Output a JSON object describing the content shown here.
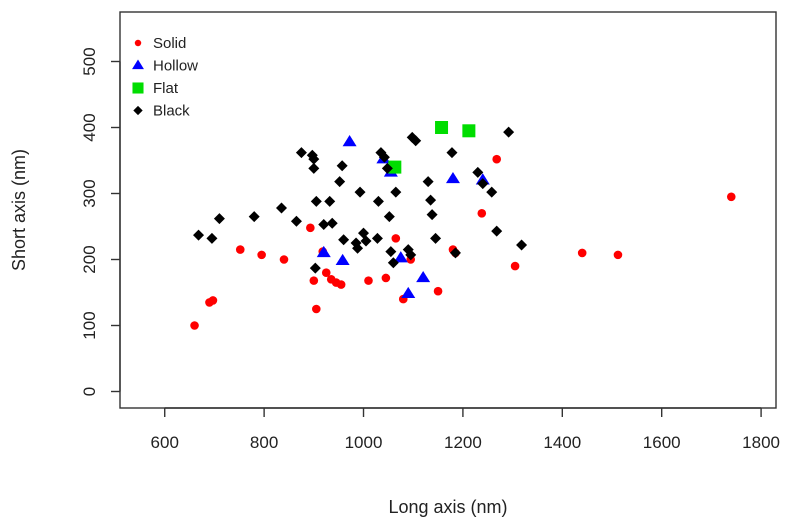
{
  "chart_data": {
    "type": "scatter",
    "title": "",
    "xlabel": "Long axis (nm)",
    "ylabel": "Short axis (nm)",
    "xlim": [
      510,
      1830
    ],
    "ylim": [
      -25,
      575
    ],
    "xticks": [
      600,
      800,
      1000,
      1200,
      1400,
      1600,
      1800
    ],
    "yticks": [
      0,
      100,
      200,
      300,
      400,
      500
    ],
    "grid": false,
    "legend_position": "top-left",
    "series": [
      {
        "name": "Solid",
        "marker": "circle",
        "color": "#ff0000",
        "points": [
          [
            660,
            100
          ],
          [
            690,
            135
          ],
          [
            697,
            138
          ],
          [
            752,
            215
          ],
          [
            795,
            207
          ],
          [
            840,
            200
          ],
          [
            893,
            248
          ],
          [
            900,
            168
          ],
          [
            905,
            125
          ],
          [
            918,
            212
          ],
          [
            925,
            180
          ],
          [
            935,
            170
          ],
          [
            945,
            165
          ],
          [
            955,
            162
          ],
          [
            1010,
            168
          ],
          [
            1045,
            172
          ],
          [
            1065,
            232
          ],
          [
            1080,
            140
          ],
          [
            1095,
            200
          ],
          [
            1150,
            152
          ],
          [
            1180,
            215
          ],
          [
            1185,
            210
          ],
          [
            1238,
            270
          ],
          [
            1268,
            352
          ],
          [
            1305,
            190
          ],
          [
            1440,
            210
          ],
          [
            1512,
            207
          ],
          [
            1740,
            295
          ]
        ]
      },
      {
        "name": "Hollow",
        "marker": "triangle",
        "color": "#0000ff",
        "points": [
          [
            920,
            210
          ],
          [
            958,
            198
          ],
          [
            972,
            378
          ],
          [
            1040,
            352
          ],
          [
            1055,
            332
          ],
          [
            1075,
            202
          ],
          [
            1090,
            148
          ],
          [
            1120,
            172
          ],
          [
            1180,
            322
          ],
          [
            1240,
            320
          ]
        ]
      },
      {
        "name": "Flat",
        "marker": "square",
        "color": "#00dd00",
        "points": [
          [
            1063,
            340
          ],
          [
            1157,
            400
          ],
          [
            1212,
            395
          ]
        ]
      },
      {
        "name": "Black",
        "marker": "diamond",
        "color": "#000000",
        "points": [
          [
            668,
            237
          ],
          [
            695,
            232
          ],
          [
            710,
            262
          ],
          [
            780,
            265
          ],
          [
            835,
            278
          ],
          [
            865,
            258
          ],
          [
            875,
            362
          ],
          [
            897,
            358
          ],
          [
            900,
            352
          ],
          [
            900,
            338
          ],
          [
            905,
            288
          ],
          [
            920,
            253
          ],
          [
            932,
            288
          ],
          [
            937,
            255
          ],
          [
            952,
            318
          ],
          [
            957,
            342
          ],
          [
            960,
            230
          ],
          [
            985,
            225
          ],
          [
            993,
            302
          ],
          [
            1000,
            240
          ],
          [
            1005,
            228
          ],
          [
            1028,
            232
          ],
          [
            1030,
            288
          ],
          [
            1035,
            362
          ],
          [
            1042,
            355
          ],
          [
            1048,
            338
          ],
          [
            1052,
            265
          ],
          [
            1055,
            212
          ],
          [
            1060,
            195
          ],
          [
            1065,
            302
          ],
          [
            1090,
            215
          ],
          [
            1095,
            207
          ],
          [
            1098,
            385
          ],
          [
            1105,
            380
          ],
          [
            1130,
            318
          ],
          [
            1135,
            290
          ],
          [
            1138,
            268
          ],
          [
            1145,
            232
          ],
          [
            1178,
            362
          ],
          [
            1185,
            210
          ],
          [
            1230,
            332
          ],
          [
            1240,
            315
          ],
          [
            1258,
            302
          ],
          [
            1268,
            243
          ],
          [
            1292,
            393
          ],
          [
            1318,
            222
          ],
          [
            903,
            187
          ],
          [
            988,
            217
          ]
        ]
      }
    ]
  }
}
